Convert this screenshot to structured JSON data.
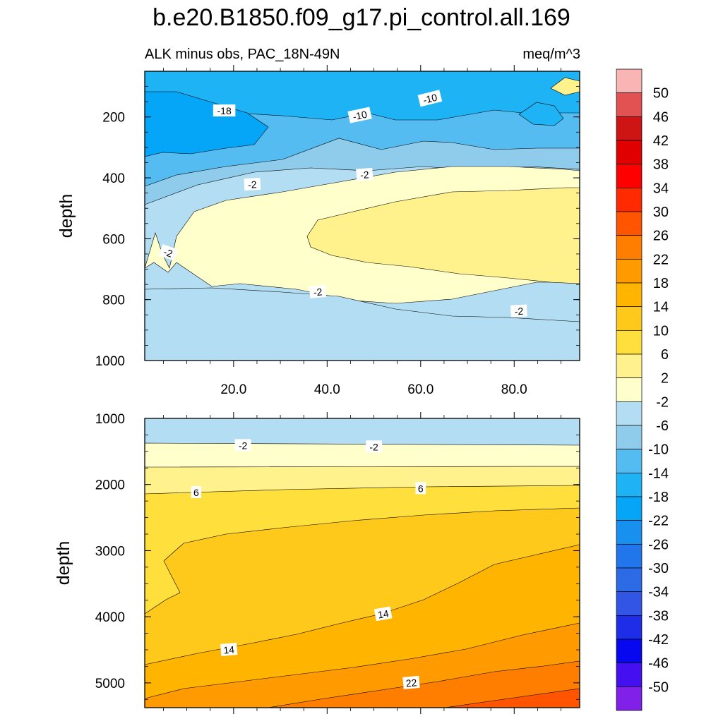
{
  "chart_data": {
    "type": "contour",
    "title": "b.e20.B1850.f09_g17.pi_control.all.169",
    "subtitle_left": "ALK minus obs, PAC_18N-49N",
    "subtitle_right": "meq/m^3",
    "colorbar": {
      "levels": [
        "50",
        "46",
        "42",
        "38",
        "34",
        "30",
        "26",
        "22",
        "18",
        "14",
        "10",
        "6",
        "2",
        "-2",
        "-6",
        "-10",
        "-14",
        "-18",
        "-22",
        "-26",
        "-30",
        "-34",
        "-38",
        "-42",
        "-46",
        "-50"
      ],
      "colors": [
        "#f9b4b4",
        "#e25252",
        "#cf1414",
        "#e00000",
        "#ff0000",
        "#ff2a00",
        "#ff5400",
        "#ff7e00",
        "#ff9b00",
        "#ffb400",
        "#ffc91c",
        "#ffdf3c",
        "#fff18c",
        "#ffffcc",
        "#b3ddf2",
        "#8fccec",
        "#54bcf0",
        "#1eb3f4",
        "#05a5f8",
        "#1890f0",
        "#2276ec",
        "#2c6ae6",
        "#3255e6",
        "#1e2de8",
        "#0808f0",
        "#4410f0",
        "#8020e8"
      ]
    },
    "panels": [
      {
        "name": "upper",
        "ylabel": "depth",
        "xlabel": "",
        "x_ticks": [
          "20.0",
          "40.0",
          "60.0",
          "80.0"
        ],
        "x_tick_values": [
          20,
          40,
          60,
          80
        ],
        "x_range": [
          1,
          94
        ],
        "y_ticks": [
          "200",
          "400",
          "600",
          "800",
          "1000"
        ],
        "y_tick_values": [
          200,
          400,
          600,
          800,
          1000
        ],
        "y_range": [
          50,
          1000
        ],
        "contour_labels": [
          "-18",
          "-10",
          "-10",
          "-2",
          "-2",
          "-2",
          "-2",
          "-2"
        ],
        "contour_label_pos": [
          [
            18,
            180
          ],
          [
            47,
            195
          ],
          [
            62,
            140
          ],
          [
            24,
            422
          ],
          [
            48,
            390
          ],
          [
            6,
            646
          ],
          [
            38,
            775
          ],
          [
            81,
            838
          ]
        ],
        "contour_label_rot": [
          0,
          -12,
          -14,
          -3,
          -4,
          20,
          -5,
          -3
        ]
      },
      {
        "name": "lower",
        "ylabel": "depth",
        "x_ticks": [],
        "x_tick_values": [
          20,
          40,
          60,
          80
        ],
        "x_range": [
          1,
          94
        ],
        "y_ticks": [
          "1000",
          "2000",
          "3000",
          "4000",
          "5000"
        ],
        "y_tick_values": [
          1000,
          2000,
          3000,
          4000,
          5000
        ],
        "y_range": [
          1000,
          5375
        ],
        "contour_labels": [
          "-2",
          "-2",
          "6",
          "6",
          "14",
          "14",
          "22"
        ],
        "contour_label_pos": [
          [
            22,
            1410
          ],
          [
            50,
            1430
          ],
          [
            12,
            2120
          ],
          [
            60,
            2060
          ],
          [
            19,
            4500
          ],
          [
            52,
            3960
          ],
          [
            58,
            5000
          ]
        ],
        "contour_label_rot": [
          0,
          0,
          0,
          0,
          -5,
          -10,
          -5
        ]
      }
    ]
  }
}
